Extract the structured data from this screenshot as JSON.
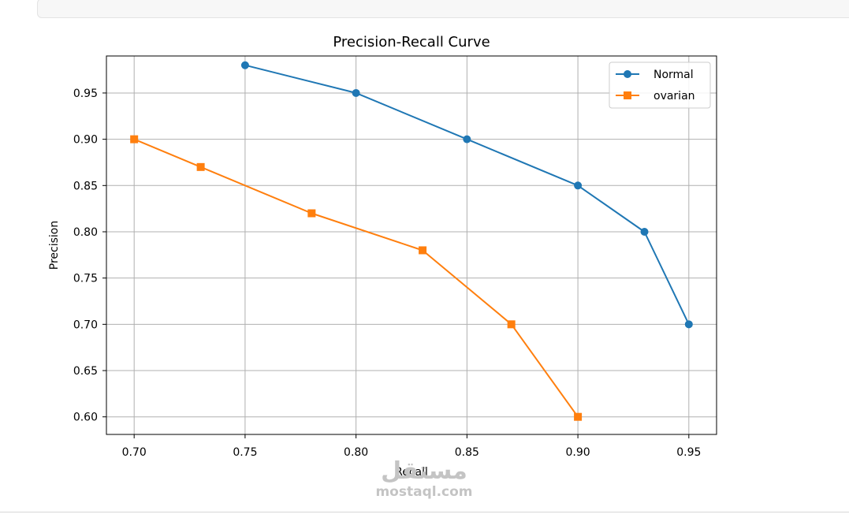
{
  "chart_data": {
    "type": "line",
    "title": "Precision-Recall Curve",
    "xlabel": "Recall",
    "ylabel": "Precision",
    "xlim": [
      0.6875,
      0.9625
    ],
    "ylim": [
      0.581,
      0.99
    ],
    "xticks": [
      "0.70",
      "0.75",
      "0.80",
      "0.85",
      "0.90",
      "0.95"
    ],
    "yticks": [
      "0.60",
      "0.65",
      "0.70",
      "0.75",
      "0.80",
      "0.85",
      "0.90",
      "0.95"
    ],
    "grid": true,
    "legend_position": "top-right",
    "series": [
      {
        "name": "Normal",
        "color": "#1f77b4",
        "marker": "circle",
        "x": [
          0.75,
          0.8,
          0.85,
          0.9,
          0.93,
          0.95
        ],
        "y": [
          0.98,
          0.95,
          0.9,
          0.85,
          0.8,
          0.7
        ]
      },
      {
        "name": "ovarian",
        "color": "#ff7f0e",
        "marker": "square",
        "x": [
          0.7,
          0.73,
          0.78,
          0.83,
          0.87,
          0.9
        ],
        "y": [
          0.9,
          0.87,
          0.82,
          0.78,
          0.7,
          0.6
        ]
      }
    ]
  },
  "watermark": {
    "logo_text": "مستقل",
    "url": "mostaql.com"
  }
}
